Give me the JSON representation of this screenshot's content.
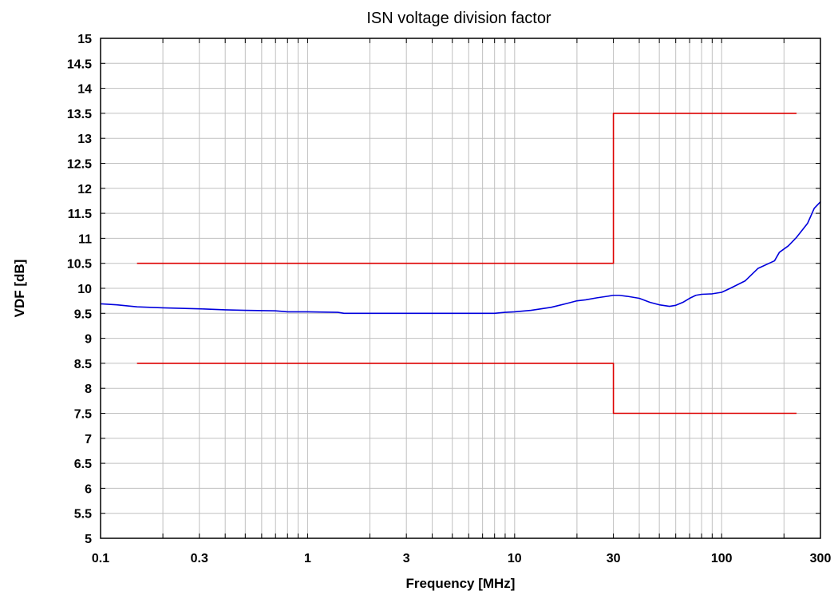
{
  "chart_data": {
    "type": "line",
    "title": "ISN voltage division factor",
    "xlabel": "Frequency [MHz]",
    "ylabel": "VDF [dB]",
    "xscale": "log",
    "xlim": [
      0.1,
      300
    ],
    "ylim": [
      5,
      15
    ],
    "grid": true,
    "x_tick_labels": [
      {
        "value": 0.1,
        "label": "0.1"
      },
      {
        "value": 0.3,
        "label": "0.3"
      },
      {
        "value": 1,
        "label": "1"
      },
      {
        "value": 3,
        "label": "3"
      },
      {
        "value": 10,
        "label": "10"
      },
      {
        "value": 30,
        "label": "30"
      },
      {
        "value": 100,
        "label": "100"
      },
      {
        "value": 300,
        "label": "300"
      }
    ],
    "y_tick_labels": [
      "5",
      "5.5",
      "6",
      "6.5",
      "7",
      "7.5",
      "8",
      "8.5",
      "9",
      "9.5",
      "10",
      "10.5",
      "11",
      "11.5",
      "12",
      "12.5",
      "13",
      "13.5",
      "14",
      "14.5",
      "15"
    ],
    "series": [
      {
        "color": "#0000dd",
        "x": [
          0.1,
          0.12,
          0.15,
          0.2,
          0.3,
          0.4,
          0.5,
          0.7,
          0.8,
          1,
          1.4,
          1.5,
          2,
          3,
          5,
          8,
          9,
          10,
          12,
          15,
          18,
          20,
          22,
          25,
          28,
          30,
          32,
          35,
          40,
          45,
          50,
          56,
          60,
          65,
          70,
          75,
          80,
          90,
          100,
          110,
          130,
          150,
          180,
          190,
          210,
          230,
          260,
          280,
          300
        ],
        "y": [
          9.69,
          9.67,
          9.63,
          9.61,
          9.59,
          9.57,
          9.56,
          9.55,
          9.53,
          9.53,
          9.52,
          9.5,
          9.5,
          9.5,
          9.5,
          9.5,
          9.52,
          9.53,
          9.56,
          9.62,
          9.7,
          9.75,
          9.77,
          9.81,
          9.84,
          9.86,
          9.86,
          9.84,
          9.8,
          9.72,
          9.67,
          9.64,
          9.66,
          9.72,
          9.8,
          9.86,
          9.88,
          9.89,
          9.92,
          10.0,
          10.15,
          10.4,
          10.55,
          10.72,
          10.85,
          11.02,
          11.3,
          11.6,
          11.73
        ]
      },
      {
        "color": "#dd0000",
        "x": [
          0.15,
          30,
          30,
          230
        ],
        "y": [
          10.5,
          10.5,
          13.5,
          13.5
        ]
      },
      {
        "color": "#dd0000",
        "x": [
          0.15,
          30,
          30,
          230
        ],
        "y": [
          8.5,
          8.5,
          7.5,
          7.5
        ]
      }
    ]
  }
}
